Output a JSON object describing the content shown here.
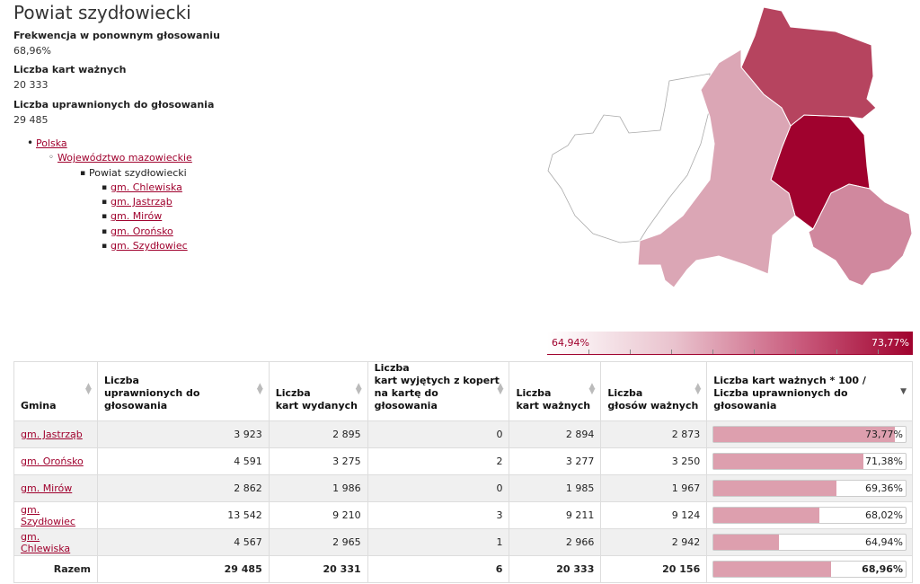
{
  "title": "Powiat szydłowiecki",
  "stats": [
    {
      "label": "Frekwencja w ponownym głosowaniu",
      "value": "68,96%"
    },
    {
      "label": "Liczba kart ważnych",
      "value": "20 333"
    },
    {
      "label": "Liczba uprawnionych do głosowania",
      "value": "29 485"
    }
  ],
  "breadcrumb": {
    "country": "Polska",
    "voivodeship": "Województwo mazowieckie",
    "county": "Powiat szydłowiecki",
    "gminas": [
      "gm. Chlewiska",
      "gm. Jastrząb",
      "gm. Mirów",
      "gm. Orońsko",
      "gm. Szydłowiec"
    ]
  },
  "legend": {
    "min": "64,94%",
    "max": "73,77%"
  },
  "colors": {
    "accent": "#a0022e",
    "bar": "#dd9fae",
    "legend_low": "#ffffff",
    "legend_high": "#a0022e"
  },
  "table": {
    "headers": [
      "Gmina",
      "Liczba\nuprawnionych do głosowania",
      "Liczba\nkart wydanych",
      "Liczba\nkart wyjętych z kopert\nna kartę do głosowania",
      "Liczba\nkart ważnych",
      "Liczba\ngłosów ważnych",
      "Liczba kart ważnych * 100 /\nLiczba uprawnionych do głosowania"
    ],
    "rows": [
      {
        "gmina": "gm. Jastrząb",
        "uprawnieni": "3 923",
        "wydane": "2 895",
        "wyjete": "0",
        "wazne": "2 894",
        "glosy": "2 873",
        "frekwencja": "73,77%",
        "level": 73.77
      },
      {
        "gmina": "gm. Orońsko",
        "uprawnieni": "4 591",
        "wydane": "3 275",
        "wyjete": "2",
        "wazne": "3 277",
        "glosy": "3 250",
        "frekwencja": "71,38%",
        "level": 71.38
      },
      {
        "gmina": "gm. Mirów",
        "uprawnieni": "2 862",
        "wydane": "1 986",
        "wyjete": "0",
        "wazne": "1 985",
        "glosy": "1 967",
        "frekwencja": "69,36%",
        "level": 69.36
      },
      {
        "gmina": "gm. Szydłowiec",
        "uprawnieni": "13 542",
        "wydane": "9 210",
        "wyjete": "3",
        "wazne": "9 211",
        "glosy": "9 124",
        "frekwencja": "68,02%",
        "level": 68.02
      },
      {
        "gmina": "gm. Chlewiska",
        "uprawnieni": "4 567",
        "wydane": "2 965",
        "wyjete": "1",
        "wazne": "2 966",
        "glosy": "2 942",
        "frekwencja": "64,94%",
        "level": 64.94
      }
    ],
    "total": {
      "label": "Razem",
      "uprawnieni": "29 485",
      "wydane": "20 331",
      "wyjete": "6",
      "wazne": "20 333",
      "glosy": "20 156",
      "frekwencja": "68,96%",
      "level": 68.96
    }
  }
}
